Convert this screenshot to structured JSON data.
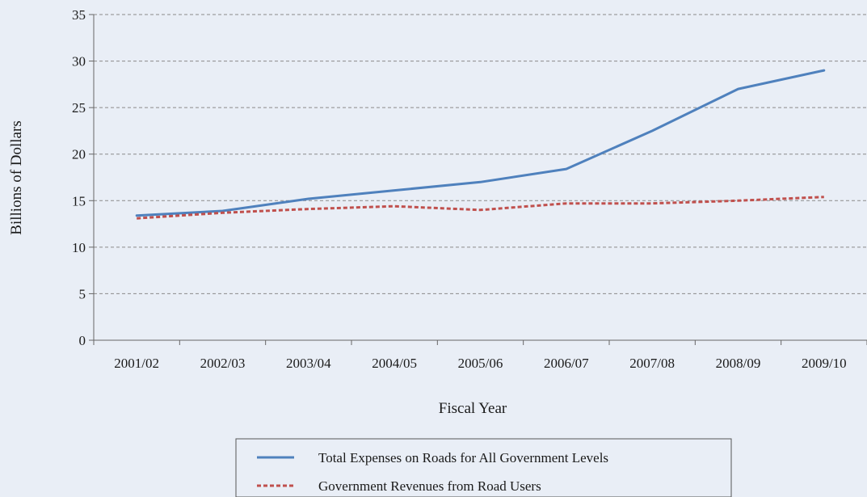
{
  "chart_data": {
    "type": "line",
    "title": "",
    "xlabel": "Fiscal Year",
    "ylabel": "Billions of Dollars",
    "categories": [
      "2001/02",
      "2002/03",
      "2003/04",
      "2004/05",
      "2005/06",
      "2006/07",
      "2007/08",
      "2008/09",
      "2009/10"
    ],
    "ylim": [
      0,
      35
    ],
    "yticks": [
      0,
      5,
      10,
      15,
      20,
      25,
      30,
      35
    ],
    "grid": true,
    "legend_position": "bottom",
    "series": [
      {
        "name": "Total Expenses on Roads for All Government Levels",
        "values": [
          13.4,
          13.9,
          15.2,
          16.1,
          17.0,
          18.4,
          22.5,
          27.0,
          29.0
        ],
        "color": "#4f81bd",
        "style": "solid"
      },
      {
        "name": "Government Revenues from Road Users",
        "values": [
          13.1,
          13.7,
          14.1,
          14.4,
          14.0,
          14.7,
          14.7,
          15.0,
          15.4
        ],
        "color": "#c0504d",
        "style": "dashed"
      }
    ]
  }
}
